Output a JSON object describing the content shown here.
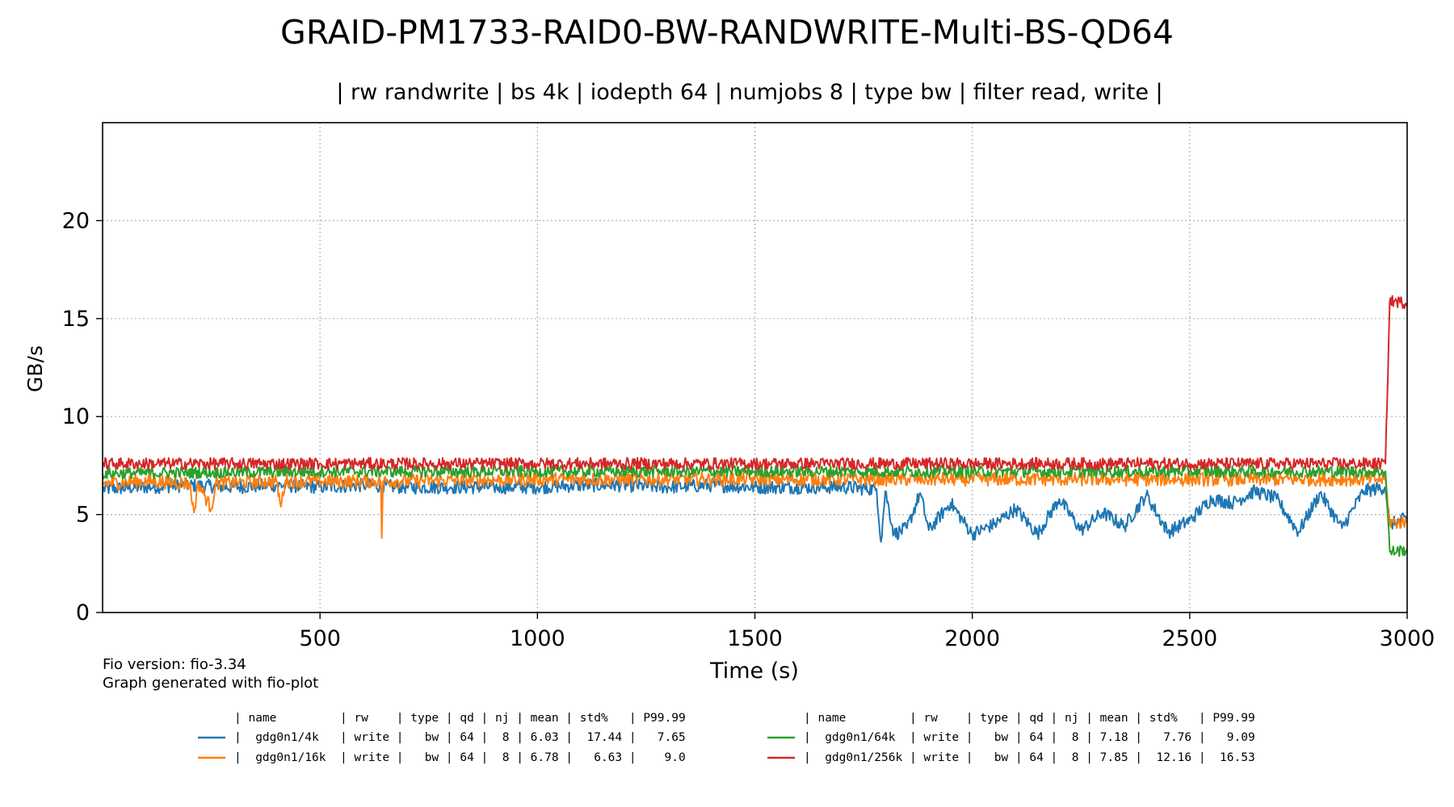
{
  "chart_data": {
    "type": "line",
    "title": "GRAID-PM1733-RAID0-BW-RANDWRITE-Multi-BS-QD64",
    "subtitle": "| rw randwrite | bs 4k | iodepth 64 | numjobs 8 | type bw | filter read, write |",
    "xlabel": "Time (s)",
    "ylabel": "GB/s",
    "xlim": [
      0,
      3000
    ],
    "ylim": [
      0,
      25
    ],
    "xticks": [
      500,
      1000,
      1500,
      2000,
      2500,
      3000
    ],
    "yticks": [
      0,
      5,
      10,
      15,
      20
    ],
    "grid": true,
    "footnotes": [
      "Fio version: fio-3.34",
      "Graph generated with fio-plot"
    ],
    "table_header": "| name         | rw    | type | qd | nj | mean | std%   | P99.99",
    "series": [
      {
        "name": "gdg0n1/4k",
        "color": "#1f77b4",
        "table_row": "|  gdg0n1/4k   | write |   bw | 64 |  8 | 6.03 |  17.44 |   7.65",
        "points": [
          [
            0,
            6.3
          ],
          [
            100,
            6.4
          ],
          [
            200,
            6.5
          ],
          [
            300,
            6.4
          ],
          [
            400,
            6.5
          ],
          [
            500,
            6.4
          ],
          [
            600,
            6.5
          ],
          [
            700,
            6.4
          ],
          [
            800,
            6.4
          ],
          [
            900,
            6.4
          ],
          [
            1000,
            6.4
          ],
          [
            1100,
            6.5
          ],
          [
            1200,
            6.5
          ],
          [
            1300,
            6.4
          ],
          [
            1400,
            6.5
          ],
          [
            1500,
            6.4
          ],
          [
            1600,
            6.4
          ],
          [
            1700,
            6.4
          ],
          [
            1780,
            6.3
          ],
          [
            1790,
            3.6
          ],
          [
            1800,
            6.2
          ],
          [
            1820,
            4.0
          ],
          [
            1850,
            4.3
          ],
          [
            1880,
            6.1
          ],
          [
            1900,
            4.2
          ],
          [
            1950,
            5.6
          ],
          [
            2000,
            4.0
          ],
          [
            2050,
            4.5
          ],
          [
            2100,
            5.3
          ],
          [
            2150,
            4.0
          ],
          [
            2200,
            5.8
          ],
          [
            2250,
            4.2
          ],
          [
            2300,
            5.1
          ],
          [
            2350,
            4.4
          ],
          [
            2400,
            6.0
          ],
          [
            2450,
            4.1
          ],
          [
            2500,
            4.7
          ],
          [
            2550,
            5.8
          ],
          [
            2600,
            5.6
          ],
          [
            2650,
            6.2
          ],
          [
            2700,
            5.8
          ],
          [
            2750,
            4.1
          ],
          [
            2800,
            6.1
          ],
          [
            2850,
            4.3
          ],
          [
            2900,
            6.2
          ],
          [
            2950,
            6.4
          ],
          [
            2960,
            4.5
          ],
          [
            3000,
            4.8
          ]
        ],
        "jitter": 0.35
      },
      {
        "name": "gdg0n1/16k",
        "color": "#ff7f0e",
        "table_row": "|  gdg0n1/16k  | write |   bw | 64 |  8 | 6.78 |   6.63 |    9.0",
        "points": [
          [
            0,
            6.6
          ],
          [
            100,
            6.7
          ],
          [
            200,
            6.6
          ],
          [
            210,
            5.1
          ],
          [
            220,
            6.6
          ],
          [
            250,
            5.3
          ],
          [
            260,
            6.6
          ],
          [
            400,
            6.7
          ],
          [
            410,
            5.4
          ],
          [
            420,
            6.7
          ],
          [
            640,
            6.7
          ],
          [
            642,
            3.8
          ],
          [
            645,
            6.7
          ],
          [
            1000,
            6.8
          ],
          [
            1500,
            6.8
          ],
          [
            2000,
            6.8
          ],
          [
            2500,
            6.8
          ],
          [
            2950,
            6.8
          ],
          [
            2960,
            4.6
          ],
          [
            3000,
            4.6
          ]
        ],
        "jitter": 0.35
      },
      {
        "name": "gdg0n1/64k",
        "color": "#2ca02c",
        "table_row": "|  gdg0n1/64k  | write |   bw | 64 |  8 | 7.18 |   7.76 |   9.09",
        "points": [
          [
            0,
            7.1
          ],
          [
            500,
            7.2
          ],
          [
            1000,
            7.2
          ],
          [
            1500,
            7.2
          ],
          [
            2000,
            7.2
          ],
          [
            2500,
            7.2
          ],
          [
            2950,
            7.2
          ],
          [
            2960,
            3.1
          ],
          [
            3000,
            3.2
          ]
        ],
        "jitter": 0.3
      },
      {
        "name": "gdg0n1/256k",
        "color": "#d62728",
        "table_row": "|  gdg0n1/256k | write |   bw | 64 |  8 | 7.85 |  12.16 |  16.53",
        "points": [
          [
            0,
            7.6
          ],
          [
            500,
            7.6
          ],
          [
            1000,
            7.6
          ],
          [
            1500,
            7.6
          ],
          [
            2000,
            7.6
          ],
          [
            2500,
            7.6
          ],
          [
            2950,
            7.6
          ],
          [
            2960,
            15.9
          ],
          [
            3000,
            15.8
          ]
        ],
        "jitter": 0.3
      }
    ]
  }
}
